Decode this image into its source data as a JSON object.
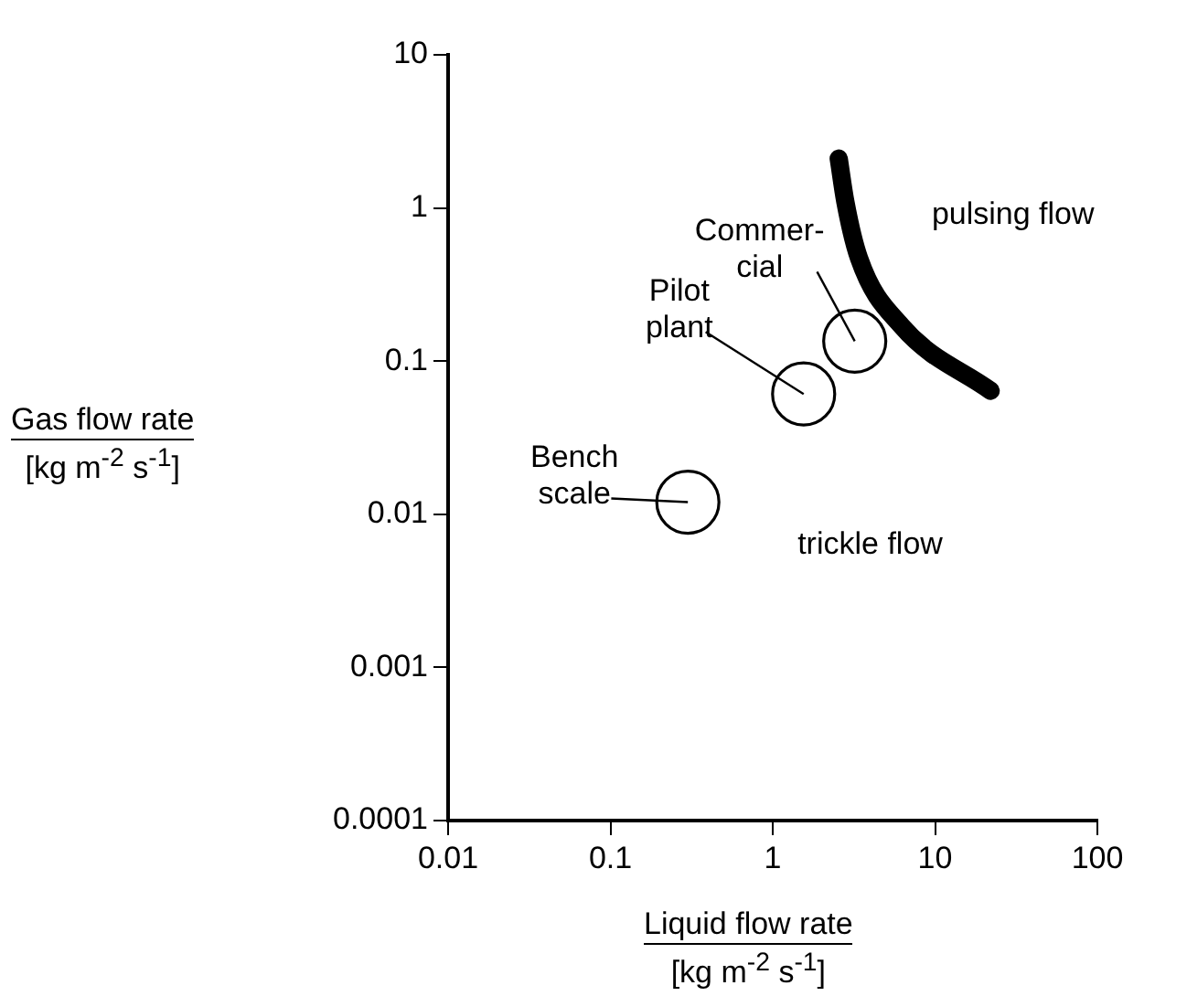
{
  "chart_data": {
    "type": "scatter",
    "xlabel": "Liquid flow rate [kg m$^{-2}$ s$^{-1}$]",
    "ylabel": "Gas flow rate [kg m$^{-2}$ s$^{-1}$]",
    "log": "xy",
    "xlim": [
      0.01,
      100
    ],
    "ylim": [
      0.0001,
      10
    ],
    "xticks": [
      0.01,
      0.1,
      1,
      10,
      100
    ],
    "yticks": [
      0.0001,
      0.001,
      0.01,
      0.1,
      1,
      10
    ],
    "grid": false,
    "series": [
      {
        "type": "line",
        "color": "#000000",
        "marker": "none",
        "x": [
          2.55,
          2.8,
          3.4,
          6.2,
          22
        ],
        "values": [
          2.1,
          1.1,
          0.47,
          0.17,
          0.064
        ]
      },
      {
        "type": "scatter",
        "color": "#000000",
        "marker": "circle",
        "x": [
          3.2,
          1.55,
          0.3
        ],
        "values": [
          0.135,
          0.061,
          0.012
        ]
      }
    ],
    "annotations": [
      {
        "text": "Commer-cial",
        "x": 3.2,
        "y": 0.135
      },
      {
        "text": "Pilot plant",
        "x": 1.55,
        "y": 0.061
      },
      {
        "text": "Bench scale",
        "x": 0.3,
        "y": 0.012
      },
      "pulsing flow",
      "trickle flow"
    ]
  }
}
